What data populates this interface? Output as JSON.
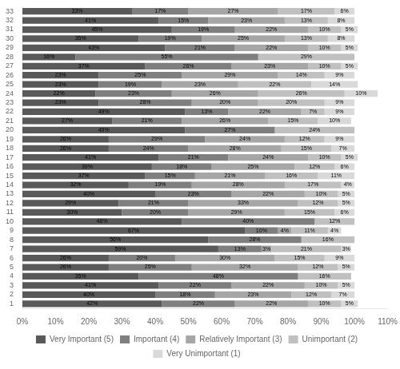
{
  "chart_data": {
    "type": "bar",
    "orientation": "horizontal",
    "stacked": true,
    "categories": [
      1,
      2,
      3,
      4,
      5,
      6,
      7,
      8,
      9,
      10,
      11,
      12,
      13,
      14,
      15,
      16,
      17,
      18,
      19,
      20,
      21,
      22,
      23,
      24,
      25,
      26,
      27,
      28,
      29,
      30,
      31,
      32,
      33
    ],
    "series": [
      {
        "name": "Very Important (5)",
        "color": "#595959",
        "values": [
          42,
          40,
          41,
          35,
          26,
          26,
          59,
          56,
          67,
          48,
          30,
          29,
          40,
          32,
          37,
          39,
          41,
          26,
          26,
          49,
          27,
          49,
          23,
          22,
          23,
          23,
          37,
          16,
          43,
          35,
          45,
          41,
          33
        ],
        "value_labels": [
          "42%",
          "40%",
          "41%",
          "35%",
          "26%",
          "26%",
          "59%",
          "56%",
          "67%",
          "48%",
          "30%",
          "29%",
          "40%",
          "32%",
          "37%",
          "39%",
          "41%",
          "26%",
          "26%",
          "49%",
          "27%",
          "49%",
          "23%",
          "22%",
          "23%",
          "23%",
          "37%",
          "16%",
          "43%",
          "35%",
          "45%",
          "41%",
          "33%"
        ]
      },
      {
        "name": "Important (4)",
        "color": "#7F7F7F",
        "values": [
          22,
          18,
          22,
          48,
          25,
          20,
          13,
          28,
          10,
          40,
          20,
          21,
          23,
          19,
          15,
          18,
          21,
          24,
          29,
          27,
          21,
          13,
          28,
          23,
          19,
          25,
          26,
          55,
          21,
          19,
          19,
          15,
          17
        ],
        "value_labels": [
          "22%",
          "18%",
          "22%",
          "48%",
          "25%",
          "20%",
          "13%",
          "28%",
          "10%",
          "40%",
          "20%",
          "21%",
          "23%",
          "19%",
          "15%",
          "18%",
          "21%",
          "24%",
          "29%",
          "27%",
          "21%",
          "13%",
          "28%",
          "23%",
          "19%",
          "25%",
          "26%",
          "55%",
          "21%",
          "19%",
          "19%",
          "15%",
          "17%"
        ]
      },
      {
        "name": "Relatively Important (3)",
        "color": "#A6A6A6",
        "values": [
          22,
          23,
          22,
          0,
          32,
          30,
          3,
          0,
          4,
          0,
          29,
          33,
          22,
          28,
          21,
          25,
          24,
          28,
          24,
          0,
          26,
          22,
          20,
          26,
          23,
          29,
          23,
          0,
          22,
          25,
          22,
          23,
          27
        ],
        "value_labels": [
          "22%",
          "23%",
          "22%",
          null,
          "32%",
          "30%",
          "3%",
          null,
          "4%",
          null,
          "29%",
          "33%",
          "22%",
          "28%",
          "21%",
          "25%",
          "24%",
          "28%",
          "24%",
          null,
          "26%",
          "22%",
          "20%",
          "26%",
          "23%",
          "29%",
          "23%",
          null,
          "22%",
          "25%",
          "22%",
          "23%",
          "27%"
        ]
      },
      {
        "name": "Unimportant (2)",
        "color": "#C0C0C0",
        "values": [
          10,
          12,
          10,
          16,
          12,
          15,
          21,
          16,
          11,
          12,
          15,
          12,
          10,
          17,
          16,
          12,
          10,
          15,
          12,
          24,
          15,
          7,
          20,
          26,
          22,
          14,
          10,
          29,
          10,
          13,
          10,
          13,
          17
        ],
        "value_labels": [
          "10%",
          "12%",
          "10%",
          "16%",
          "12%",
          "15%",
          "21%",
          "16%",
          "11%",
          "12%",
          "15%",
          "12%",
          "10%",
          "17%",
          "16%",
          "12%",
          "10%",
          "15%",
          "12%",
          "24%",
          "15%",
          "7%",
          "20%",
          "26%",
          "22%",
          "14%",
          "10%",
          "29%",
          "10%",
          "13%",
          "10%",
          "13%",
          "17%"
        ]
      },
      {
        "name": "Very Unimportant (1)",
        "color": "#D9D9D9",
        "values": [
          5,
          7,
          5,
          0,
          5,
          9,
          3,
          0,
          4,
          0,
          6,
          5,
          5,
          4,
          11,
          6,
          5,
          7,
          9,
          0,
          10,
          9,
          9,
          10,
          14,
          9,
          5,
          0,
          5,
          8,
          5,
          8,
          6
        ],
        "value_labels": [
          "5%",
          "7%",
          "5%",
          null,
          "5%",
          "9%",
          "3%",
          null,
          "4%",
          null,
          "6%",
          "5%",
          "5%",
          "4%",
          "11%",
          "6%",
          "5%",
          "7%",
          "9%",
          null,
          "10%",
          "9%",
          "9%",
          "10%",
          "14%",
          "9%",
          "5%",
          null,
          "5%",
          "8%",
          "5%",
          "8%",
          "6%"
        ]
      }
    ],
    "xlim": [
      0,
      110
    ],
    "xticks": [
      {
        "value": 0,
        "label": "0%"
      },
      {
        "value": 10,
        "label": "10%"
      },
      {
        "value": 20,
        "label": "20%"
      },
      {
        "value": 30,
        "label": "30%"
      },
      {
        "value": 40,
        "label": "40%"
      },
      {
        "value": 50,
        "label": "50%"
      },
      {
        "value": 60,
        "label": "60%"
      },
      {
        "value": 70,
        "label": "70%"
      },
      {
        "value": 80,
        "label": "80%"
      },
      {
        "value": 90,
        "label": "90%"
      },
      {
        "value": 100,
        "label": "100%"
      },
      {
        "value": 110,
        "label": "110%"
      }
    ],
    "grid": false,
    "legend": "bottom",
    "data_labels": true
  }
}
